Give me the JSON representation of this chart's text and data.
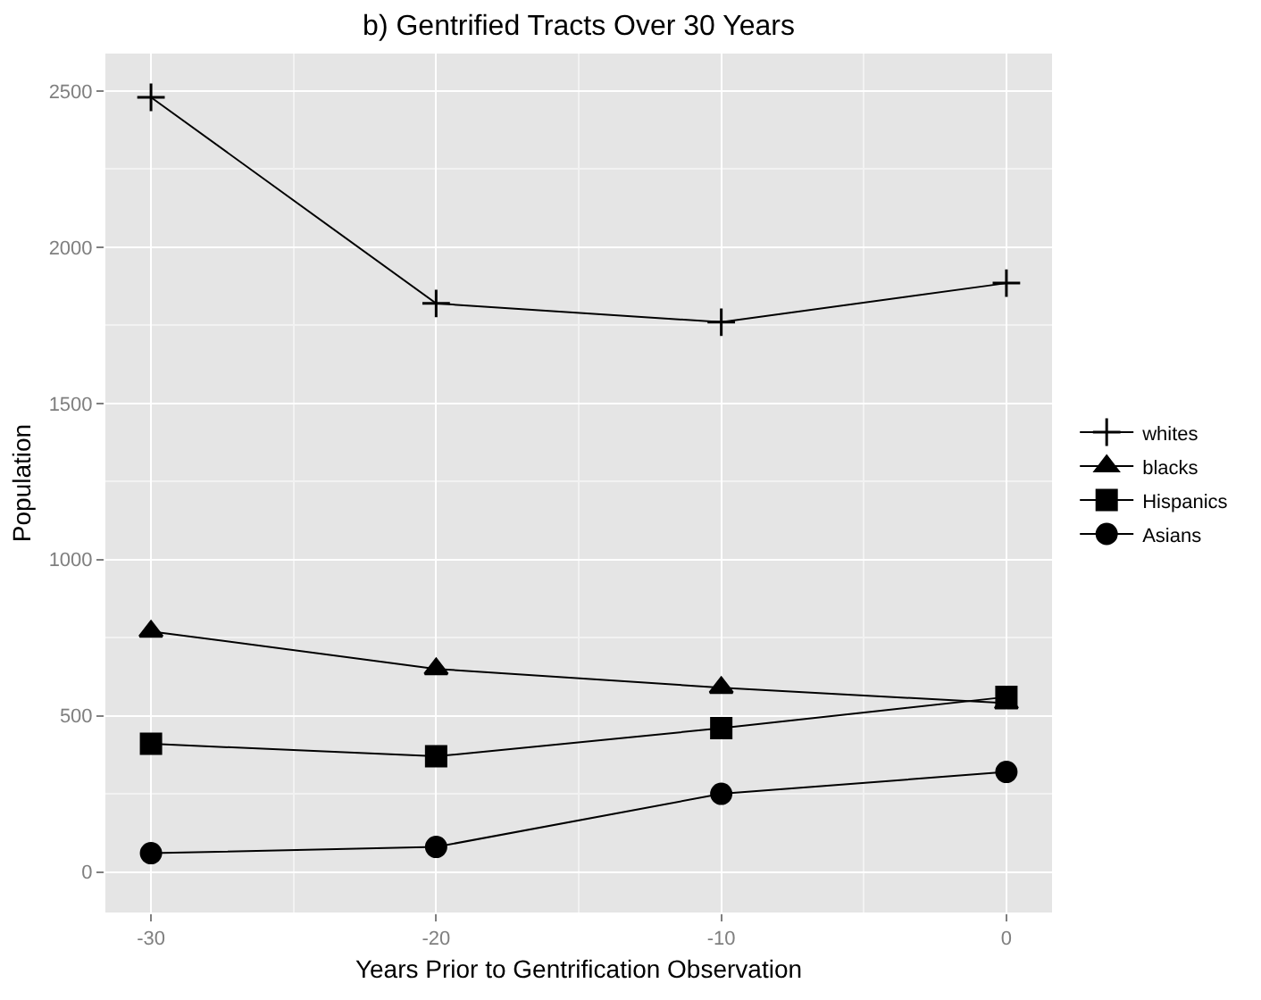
{
  "chart_data": {
    "type": "line",
    "title": "b) Gentrified Tracts Over 30 Years",
    "xlabel": "Years Prior to Gentrification Observation",
    "ylabel": "Population",
    "x": [
      -30,
      -20,
      -10,
      0
    ],
    "series": [
      {
        "name": "whites",
        "color": "#000000",
        "marker": "cross",
        "values": [
          2480,
          1820,
          1760,
          1885
        ]
      },
      {
        "name": "blacks",
        "color": "#000000",
        "marker": "triangle",
        "values": [
          770,
          650,
          590,
          540
        ]
      },
      {
        "name": "Hispanics",
        "color": "#000000",
        "marker": "square",
        "values": [
          410,
          370,
          460,
          560
        ]
      },
      {
        "name": "Asians",
        "color": "#000000",
        "marker": "circle",
        "values": [
          60,
          80,
          250,
          320
        ]
      }
    ],
    "xlim": [
      -31.6,
      1.6
    ],
    "xticks": [
      -30,
      -20,
      -10,
      0
    ],
    "ylim": [
      -130,
      2620
    ],
    "yticks": [
      0,
      500,
      1000,
      1500,
      2000,
      2500
    ],
    "grid": true,
    "legend": "right"
  }
}
